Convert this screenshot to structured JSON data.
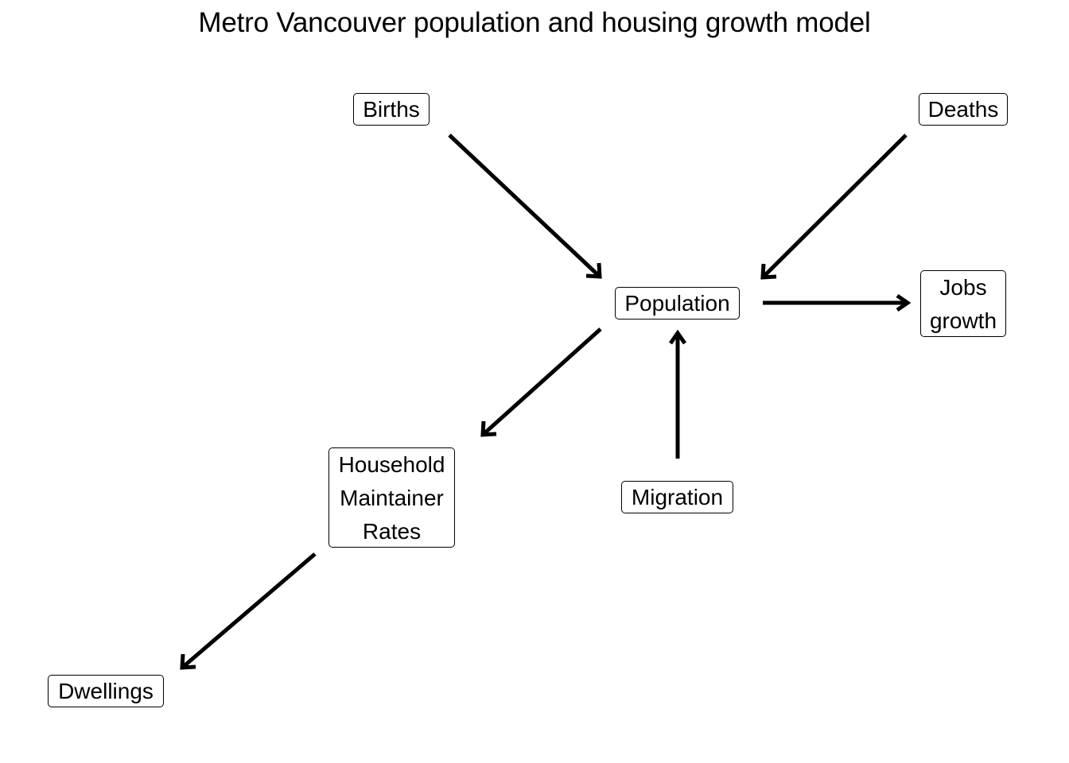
{
  "title": "Metro Vancouver population and housing growth model",
  "nodes": {
    "births": {
      "lines": [
        "Births"
      ]
    },
    "deaths": {
      "lines": [
        "Deaths"
      ]
    },
    "population": {
      "lines": [
        "Population"
      ]
    },
    "jobs_growth": {
      "lines": [
        "Jobs",
        "growth"
      ]
    },
    "household_maintainer_rates": {
      "lines": [
        "Household",
        "Maintainer",
        "Rates"
      ]
    },
    "migration": {
      "lines": [
        "Migration"
      ]
    },
    "dwellings": {
      "lines": [
        "Dwellings"
      ]
    }
  },
  "edges": [
    {
      "from": "Births",
      "to": "Population"
    },
    {
      "from": "Deaths",
      "to": "Population"
    },
    {
      "from": "Population",
      "to": "Jobs growth"
    },
    {
      "from": "Migration",
      "to": "Population"
    },
    {
      "from": "Population",
      "to": "Household Maintainer Rates"
    },
    {
      "from": "Household Maintainer Rates",
      "to": "Dwellings"
    }
  ]
}
